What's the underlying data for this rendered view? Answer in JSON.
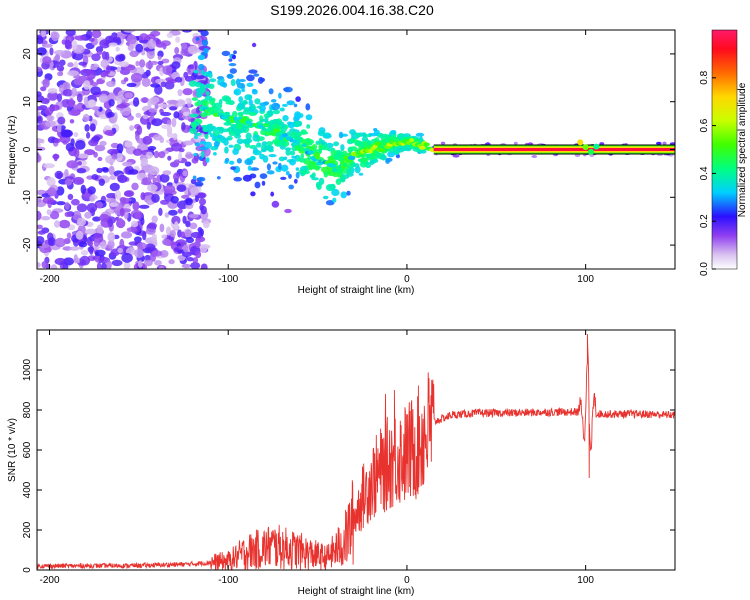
{
  "title": "S199.2026.004.16.38.C20",
  "chart_data": [
    {
      "type": "heatmap",
      "name": "spectrogram",
      "xlabel": "Height of straight line (km)",
      "ylabel": "Frequency (Hz)",
      "xlim": [
        -207,
        150
      ],
      "ylim": [
        -25,
        25
      ],
      "xticks": [
        -200,
        -100,
        0,
        100
      ],
      "yticks": [
        20,
        10,
        0,
        -10,
        -20
      ],
      "colorbar": {
        "label": "Normalized spectral amplitude",
        "range": [
          0,
          1
        ],
        "ticks": [
          0.0,
          0.2,
          0.4,
          0.6,
          0.8
        ],
        "tick_labels": [
          "0.0",
          "0.2",
          "0.4",
          "0.6",
          "0.8"
        ]
      },
      "carrier": {
        "frequency_hz": 0,
        "x_start": 15,
        "x_end": 150,
        "amplitude": 0.95
      },
      "ridge": [
        {
          "x": -120,
          "y": 9
        },
        {
          "x": -100,
          "y": 7
        },
        {
          "x": -85,
          "y": 5
        },
        {
          "x": -70,
          "y": 3
        },
        {
          "x": -60,
          "y": 1
        },
        {
          "x": -50,
          "y": -2
        },
        {
          "x": -40,
          "y": -4
        },
        {
          "x": -35,
          "y": -3
        },
        {
          "x": -30,
          "y": -1
        },
        {
          "x": -20,
          "y": 0
        },
        {
          "x": -10,
          "y": 1
        },
        {
          "x": 0,
          "y": 1.5
        },
        {
          "x": 10,
          "y": 1
        },
        {
          "x": 15,
          "y": 0
        }
      ]
    },
    {
      "type": "line",
      "name": "snr",
      "xlabel": "Height of straight line (km)",
      "ylabel": "SNR (10 * v/v)",
      "xlim": [
        -207,
        150
      ],
      "ylim": [
        0,
        1200
      ],
      "xticks": [
        -200,
        -100,
        0,
        100
      ],
      "yticks": [
        0,
        200,
        400,
        600,
        800,
        1000
      ],
      "color": "#e8322e",
      "trend": [
        {
          "x": -207,
          "y": 20
        },
        {
          "x": -150,
          "y": 22
        },
        {
          "x": -120,
          "y": 30
        },
        {
          "x": -100,
          "y": 45
        },
        {
          "x": -90,
          "y": 90
        },
        {
          "x": -75,
          "y": 120
        },
        {
          "x": -60,
          "y": 95
        },
        {
          "x": -45,
          "y": 60
        },
        {
          "x": -35,
          "y": 140
        },
        {
          "x": -30,
          "y": 250
        },
        {
          "x": -25,
          "y": 360
        },
        {
          "x": -20,
          "y": 440
        },
        {
          "x": -15,
          "y": 490
        },
        {
          "x": -10,
          "y": 540
        },
        {
          "x": -5,
          "y": 570
        },
        {
          "x": 0,
          "y": 580
        },
        {
          "x": 5,
          "y": 620
        },
        {
          "x": 10,
          "y": 680
        },
        {
          "x": 15,
          "y": 740
        },
        {
          "x": 25,
          "y": 775
        },
        {
          "x": 40,
          "y": 785
        },
        {
          "x": 60,
          "y": 785
        },
        {
          "x": 80,
          "y": 790
        },
        {
          "x": 95,
          "y": 790
        },
        {
          "x": 110,
          "y": 780
        },
        {
          "x": 130,
          "y": 780
        },
        {
          "x": 150,
          "y": 775
        }
      ],
      "features": [
        {
          "x": 101,
          "y": 1180,
          "kind": "peak"
        },
        {
          "x": 102,
          "y": 460,
          "kind": "trough"
        },
        {
          "x": -7,
          "y": 900,
          "kind": "peak"
        },
        {
          "x": -12,
          "y": 880,
          "kind": "peak"
        }
      ]
    }
  ]
}
